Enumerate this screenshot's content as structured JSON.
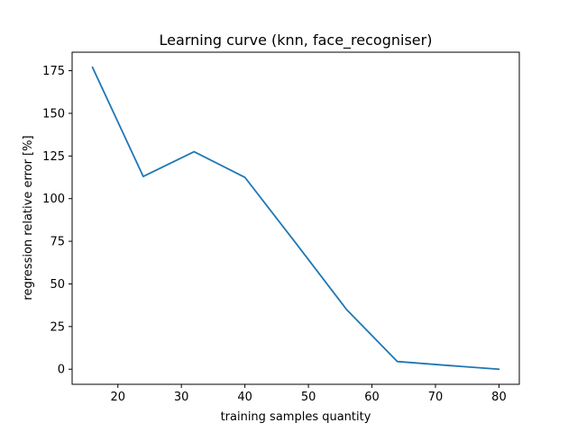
{
  "chart_data": {
    "type": "line",
    "title": "Learning curve (knn, face_recogniser)",
    "xlabel": "training samples quantity",
    "ylabel": "regression relative error [%]",
    "x": [
      16,
      24,
      32,
      40,
      48,
      56,
      64,
      72,
      80
    ],
    "series": [
      {
        "values": [
          177,
          113,
          127.5,
          112.5,
          74,
          35,
          4.5,
          2.2,
          0
        ],
        "color": "#1f77b4"
      }
    ],
    "xlim": [
      12.8,
      83.2
    ],
    "ylim": [
      -8.85,
      185.85
    ],
    "xticks": [
      20,
      30,
      40,
      50,
      60,
      70,
      80
    ],
    "yticks": [
      0,
      25,
      50,
      75,
      100,
      125,
      150,
      175
    ],
    "grid": false,
    "legend": "none"
  }
}
